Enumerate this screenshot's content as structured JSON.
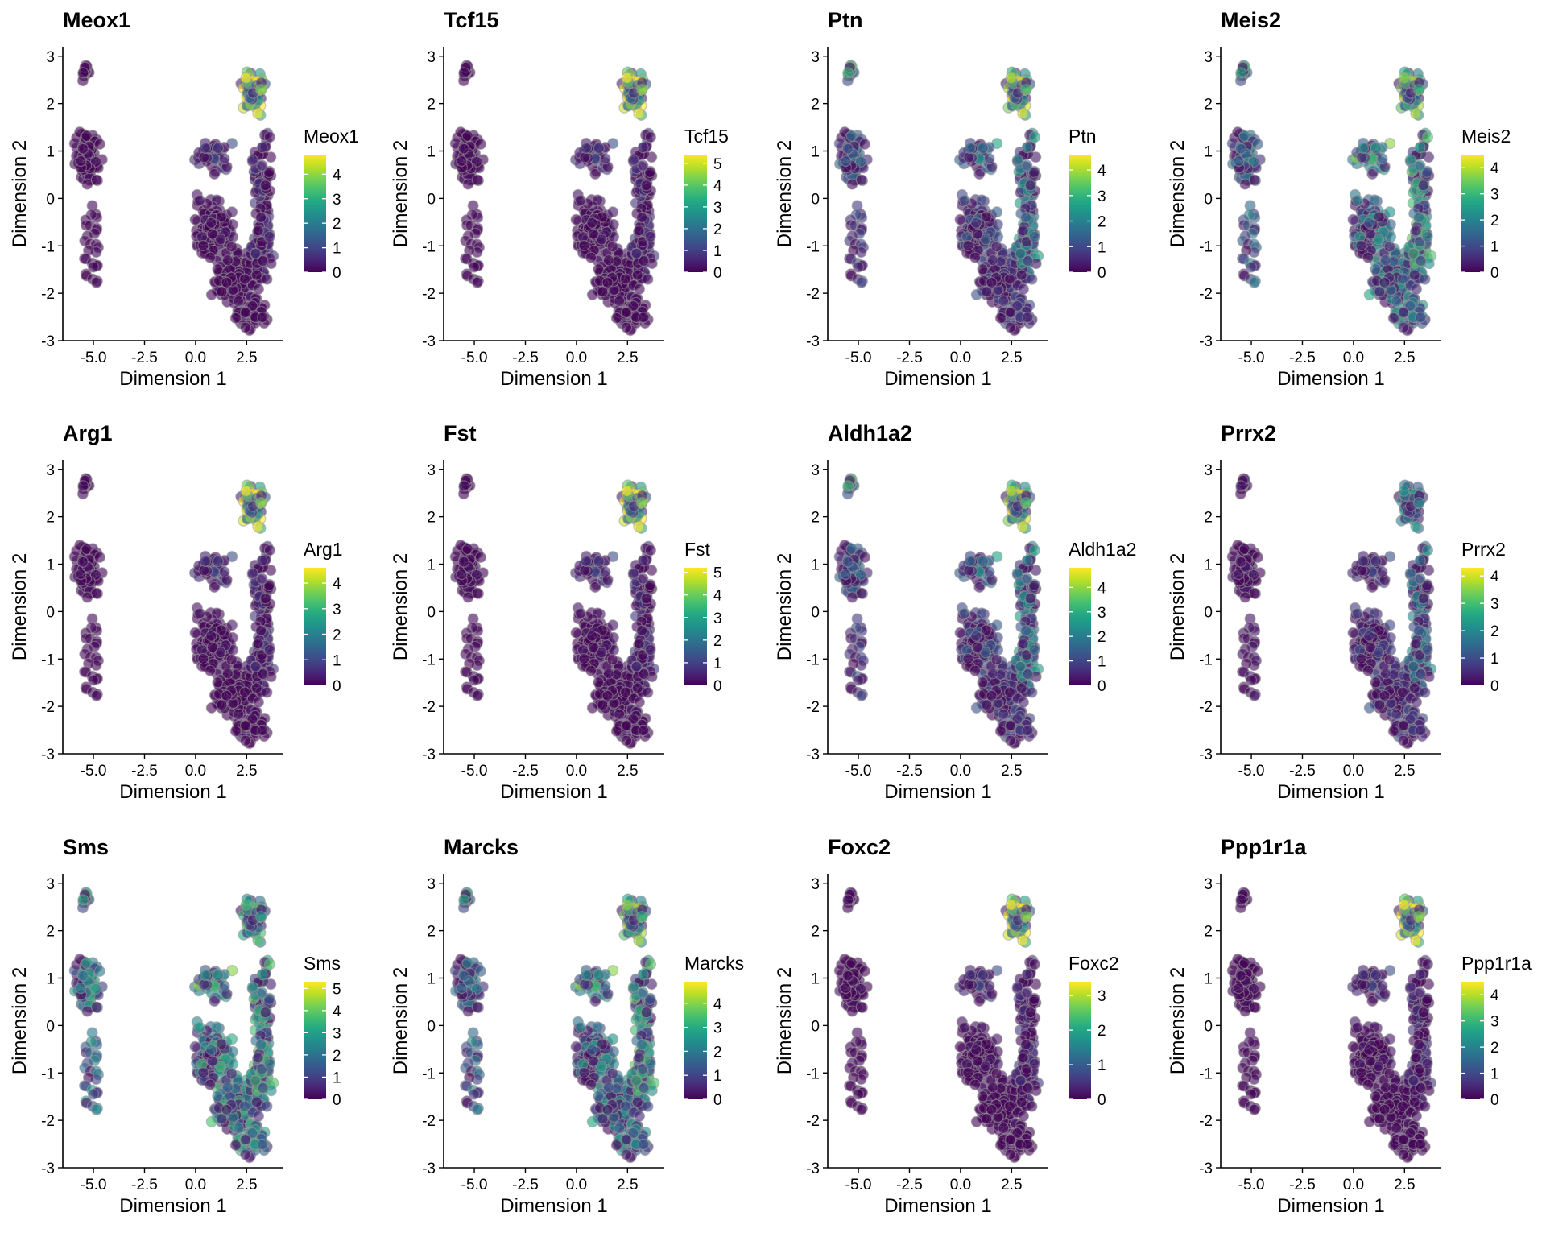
{
  "chart_data": [
    {
      "type": "scatter",
      "title": "Meox1",
      "xlabel": "Dimension 1",
      "ylabel": "Dimension 2",
      "legend_title": "Meox1",
      "color_scale": "viridis",
      "value_range": [
        0,
        4.8
      ],
      "legend_ticks": [
        "0",
        "1",
        "2",
        "3",
        "4"
      ],
      "high_expression_region": "top-cluster",
      "xlim": [
        -6.5,
        4.3
      ],
      "ylim": [
        -3,
        3.2
      ],
      "x_ticks": [
        "-5.0",
        "-2.5",
        "0.0",
        "2.5"
      ],
      "y_ticks": [
        "-3",
        "-2",
        "-1",
        "0",
        "1",
        "2",
        "3"
      ]
    },
    {
      "type": "scatter",
      "title": "Tcf15",
      "xlabel": "Dimension 1",
      "ylabel": "Dimension 2",
      "legend_title": "Tcf15",
      "color_scale": "viridis",
      "value_range": [
        0,
        5.4
      ],
      "legend_ticks": [
        "0",
        "1",
        "2",
        "3",
        "4",
        "5"
      ],
      "high_expression_region": "top-cluster",
      "xlim": [
        -6.5,
        4.3
      ],
      "ylim": [
        -3,
        3.2
      ],
      "x_ticks": [
        "-5.0",
        "-2.5",
        "0.0",
        "2.5"
      ],
      "y_ticks": [
        "-3",
        "-2",
        "-1",
        "0",
        "1",
        "2",
        "3"
      ]
    },
    {
      "type": "scatter",
      "title": "Ptn",
      "xlabel": "Dimension 1",
      "ylabel": "Dimension 2",
      "legend_title": "Ptn",
      "color_scale": "viridis",
      "value_range": [
        0,
        4.6
      ],
      "legend_ticks": [
        "0",
        "1",
        "2",
        "3",
        "4"
      ],
      "high_expression_region": "top-and-middle",
      "xlim": [
        -6.5,
        4.3
      ],
      "ylim": [
        -3,
        3.2
      ],
      "x_ticks": [
        "-5.0",
        "-2.5",
        "0.0",
        "2.5"
      ],
      "y_ticks": [
        "-3",
        "-2",
        "-1",
        "0",
        "1",
        "2",
        "3"
      ]
    },
    {
      "type": "scatter",
      "title": "Meis2",
      "xlabel": "Dimension 1",
      "ylabel": "Dimension 2",
      "legend_title": "Meis2",
      "color_scale": "viridis",
      "value_range": [
        0,
        4.5
      ],
      "legend_ticks": [
        "0",
        "1",
        "2",
        "3",
        "4"
      ],
      "high_expression_region": "broad",
      "xlim": [
        -6.5,
        4.3
      ],
      "ylim": [
        -3,
        3.2
      ],
      "x_ticks": [
        "-5.0",
        "-2.5",
        "0.0",
        "2.5"
      ],
      "y_ticks": [
        "-3",
        "-2",
        "-1",
        "0",
        "1",
        "2",
        "3"
      ]
    },
    {
      "type": "scatter",
      "title": "Arg1",
      "xlabel": "Dimension 1",
      "ylabel": "Dimension 2",
      "legend_title": "Arg1",
      "color_scale": "viridis",
      "value_range": [
        0,
        4.6
      ],
      "legend_ticks": [
        "0",
        "1",
        "2",
        "3",
        "4"
      ],
      "high_expression_region": "top-cluster",
      "xlim": [
        -6.5,
        4.3
      ],
      "ylim": [
        -3,
        3.2
      ],
      "x_ticks": [
        "-5.0",
        "-2.5",
        "0.0",
        "2.5"
      ],
      "y_ticks": [
        "-3",
        "-2",
        "-1",
        "0",
        "1",
        "2",
        "3"
      ]
    },
    {
      "type": "scatter",
      "title": "Fst",
      "xlabel": "Dimension 1",
      "ylabel": "Dimension 2",
      "legend_title": "Fst",
      "color_scale": "viridis",
      "value_range": [
        0,
        5.2
      ],
      "legend_ticks": [
        "0",
        "1",
        "2",
        "3",
        "4",
        "5"
      ],
      "high_expression_region": "top-cluster",
      "xlim": [
        -6.5,
        4.3
      ],
      "ylim": [
        -3,
        3.2
      ],
      "x_ticks": [
        "-5.0",
        "-2.5",
        "0.0",
        "2.5"
      ],
      "y_ticks": [
        "-3",
        "-2",
        "-1",
        "0",
        "1",
        "2",
        "3"
      ]
    },
    {
      "type": "scatter",
      "title": "Aldh1a2",
      "xlabel": "Dimension 1",
      "ylabel": "Dimension 2",
      "legend_title": "Aldh1a2",
      "color_scale": "viridis",
      "value_range": [
        0,
        4.8
      ],
      "legend_ticks": [
        "0",
        "1",
        "2",
        "3",
        "4"
      ],
      "high_expression_region": "top-and-middle",
      "xlim": [
        -6.5,
        4.3
      ],
      "ylim": [
        -3,
        3.2
      ],
      "x_ticks": [
        "-5.0",
        "-2.5",
        "0.0",
        "2.5"
      ],
      "y_ticks": [
        "-3",
        "-2",
        "-1",
        "0",
        "1",
        "2",
        "3"
      ]
    },
    {
      "type": "scatter",
      "title": "Prrx2",
      "xlabel": "Dimension 1",
      "ylabel": "Dimension 2",
      "legend_title": "Prrx2",
      "color_scale": "viridis",
      "value_range": [
        0,
        4.3
      ],
      "legend_ticks": [
        "0",
        "1",
        "2",
        "3",
        "4"
      ],
      "high_expression_region": "sparse",
      "xlim": [
        -6.5,
        4.3
      ],
      "ylim": [
        -3,
        3.2
      ],
      "x_ticks": [
        "-5.0",
        "-2.5",
        "0.0",
        "2.5"
      ],
      "y_ticks": [
        "-3",
        "-2",
        "-1",
        "0",
        "1",
        "2",
        "3"
      ]
    },
    {
      "type": "scatter",
      "title": "Sms",
      "xlabel": "Dimension 1",
      "ylabel": "Dimension 2",
      "legend_title": "Sms",
      "color_scale": "viridis",
      "value_range": [
        0,
        5.3
      ],
      "legend_ticks": [
        "0",
        "1",
        "2",
        "3",
        "4",
        "5"
      ],
      "high_expression_region": "uniform",
      "xlim": [
        -6.5,
        4.3
      ],
      "ylim": [
        -3,
        3.2
      ],
      "x_ticks": [
        "-5.0",
        "-2.5",
        "0.0",
        "2.5"
      ],
      "y_ticks": [
        "-3",
        "-2",
        "-1",
        "0",
        "1",
        "2",
        "3"
      ]
    },
    {
      "type": "scatter",
      "title": "Marcks",
      "xlabel": "Dimension 1",
      "ylabel": "Dimension 2",
      "legend_title": "Marcks",
      "color_scale": "viridis",
      "value_range": [
        0,
        4.9
      ],
      "legend_ticks": [
        "0",
        "1",
        "2",
        "3",
        "4"
      ],
      "high_expression_region": "broad",
      "xlim": [
        -6.5,
        4.3
      ],
      "ylim": [
        -3,
        3.2
      ],
      "x_ticks": [
        "-5.0",
        "-2.5",
        "0.0",
        "2.5"
      ],
      "y_ticks": [
        "-3",
        "-2",
        "-1",
        "0",
        "1",
        "2",
        "3"
      ]
    },
    {
      "type": "scatter",
      "title": "Foxc2",
      "xlabel": "Dimension 1",
      "ylabel": "Dimension 2",
      "legend_title": "Foxc2",
      "color_scale": "viridis",
      "value_range": [
        0,
        3.4
      ],
      "legend_ticks": [
        "0",
        "1",
        "2",
        "3"
      ],
      "high_expression_region": "top-cluster",
      "xlim": [
        -6.5,
        4.3
      ],
      "ylim": [
        -3,
        3.2
      ],
      "x_ticks": [
        "-5.0",
        "-2.5",
        "0.0",
        "2.5"
      ],
      "y_ticks": [
        "-3",
        "-2",
        "-1",
        "0",
        "1",
        "2",
        "3"
      ]
    },
    {
      "type": "scatter",
      "title": "Ppp1r1a",
      "xlabel": "Dimension 1",
      "ylabel": "Dimension 2",
      "legend_title": "Ppp1r1a",
      "color_scale": "viridis",
      "value_range": [
        0,
        4.5
      ],
      "legend_ticks": [
        "0",
        "1",
        "2",
        "3",
        "4"
      ],
      "high_expression_region": "top-cluster",
      "xlim": [
        -6.5,
        4.3
      ],
      "ylim": [
        -3,
        3.2
      ],
      "x_ticks": [
        "-5.0",
        "-2.5",
        "0.0",
        "2.5"
      ],
      "y_ticks": [
        "-3",
        "-2",
        "-1",
        "0",
        "1",
        "2",
        "3"
      ]
    }
  ]
}
